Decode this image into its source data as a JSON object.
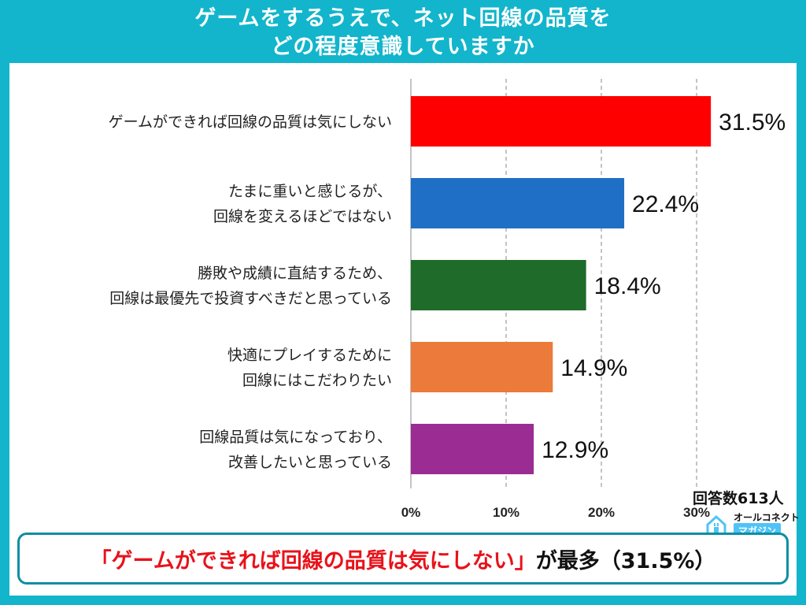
{
  "title": {
    "line1": "ゲームをするうえで、ネット回線の品質を",
    "line2": "どの程度意識していますか"
  },
  "respondents": "回答数613人",
  "brand": {
    "line1": "オールコネクト",
    "line2": "マガジン"
  },
  "summary": {
    "highlight": "「ゲームができれば回線の品質は気にしない」",
    "rest": "が最多（31.5%）"
  },
  "colors": {
    "background": "#12b5cc",
    "bar1": "#ff0000",
    "bar2": "#1f6fc6",
    "bar3": "#1f6b2a",
    "bar4": "#ec7a3a",
    "bar5": "#9b2c94"
  },
  "chart_data": {
    "type": "bar",
    "orientation": "horizontal",
    "categories": [
      [
        "ゲームができれば回線の品質は気にしない"
      ],
      [
        "たまに重いと感じるが、",
        "回線を変えるほどではない"
      ],
      [
        "勝敗や成績に直結するため、",
        "回線は最優先で投資すべきだと思っている"
      ],
      [
        "快適にプレイするために",
        "回線にはこだわりたい"
      ],
      [
        "回線品質は気になっており、",
        "改善したいと思っている"
      ]
    ],
    "values": [
      31.5,
      22.4,
      18.4,
      14.9,
      12.9
    ],
    "value_labels": [
      "31.5%",
      "22.4%",
      "18.4%",
      "14.9%",
      "12.9%"
    ],
    "bar_colors": [
      "#ff0000",
      "#1f6fc6",
      "#1f6b2a",
      "#ec7a3a",
      "#9b2c94"
    ],
    "xlim": [
      0,
      30
    ],
    "xticks": [
      0,
      10,
      20,
      30
    ],
    "xtick_labels": [
      "0%",
      "10%",
      "20%",
      "30%"
    ],
    "grid": "dashed vertical"
  }
}
